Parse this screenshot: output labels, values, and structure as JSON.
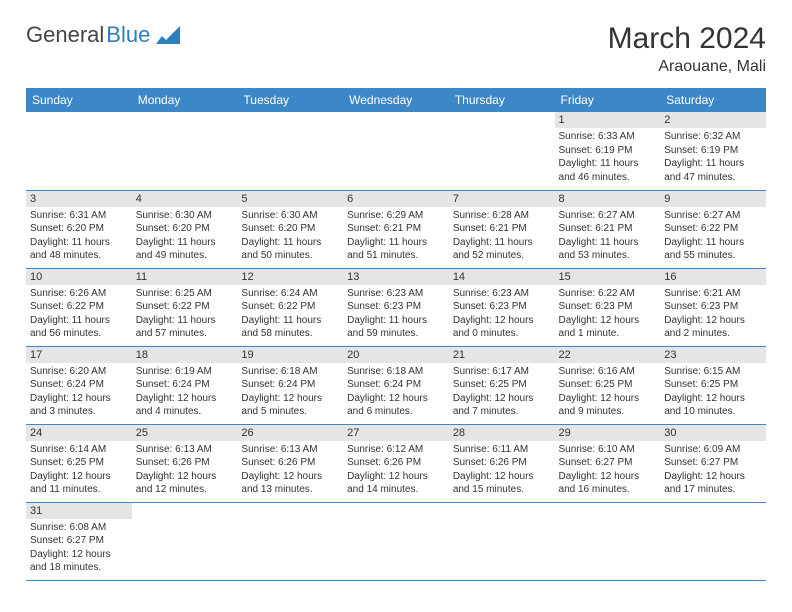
{
  "logo": {
    "text1": "General",
    "text2": "Blue"
  },
  "title": "March 2024",
  "location": "Araouane, Mali",
  "colors": {
    "header_bg": "#3c87c7",
    "header_text": "#ffffff",
    "daynum_bg": "#e5e5e5",
    "row_border": "#3c87c7",
    "text": "#333333",
    "logo_blue": "#2a7fbf"
  },
  "weekdays": [
    "Sunday",
    "Monday",
    "Tuesday",
    "Wednesday",
    "Thursday",
    "Friday",
    "Saturday"
  ],
  "weeks": [
    [
      null,
      null,
      null,
      null,
      null,
      {
        "d": "1",
        "sr": "Sunrise: 6:33 AM",
        "ss": "Sunset: 6:19 PM",
        "dl": "Daylight: 11 hours and 46 minutes."
      },
      {
        "d": "2",
        "sr": "Sunrise: 6:32 AM",
        "ss": "Sunset: 6:19 PM",
        "dl": "Daylight: 11 hours and 47 minutes."
      }
    ],
    [
      {
        "d": "3",
        "sr": "Sunrise: 6:31 AM",
        "ss": "Sunset: 6:20 PM",
        "dl": "Daylight: 11 hours and 48 minutes."
      },
      {
        "d": "4",
        "sr": "Sunrise: 6:30 AM",
        "ss": "Sunset: 6:20 PM",
        "dl": "Daylight: 11 hours and 49 minutes."
      },
      {
        "d": "5",
        "sr": "Sunrise: 6:30 AM",
        "ss": "Sunset: 6:20 PM",
        "dl": "Daylight: 11 hours and 50 minutes."
      },
      {
        "d": "6",
        "sr": "Sunrise: 6:29 AM",
        "ss": "Sunset: 6:21 PM",
        "dl": "Daylight: 11 hours and 51 minutes."
      },
      {
        "d": "7",
        "sr": "Sunrise: 6:28 AM",
        "ss": "Sunset: 6:21 PM",
        "dl": "Daylight: 11 hours and 52 minutes."
      },
      {
        "d": "8",
        "sr": "Sunrise: 6:27 AM",
        "ss": "Sunset: 6:21 PM",
        "dl": "Daylight: 11 hours and 53 minutes."
      },
      {
        "d": "9",
        "sr": "Sunrise: 6:27 AM",
        "ss": "Sunset: 6:22 PM",
        "dl": "Daylight: 11 hours and 55 minutes."
      }
    ],
    [
      {
        "d": "10",
        "sr": "Sunrise: 6:26 AM",
        "ss": "Sunset: 6:22 PM",
        "dl": "Daylight: 11 hours and 56 minutes."
      },
      {
        "d": "11",
        "sr": "Sunrise: 6:25 AM",
        "ss": "Sunset: 6:22 PM",
        "dl": "Daylight: 11 hours and 57 minutes."
      },
      {
        "d": "12",
        "sr": "Sunrise: 6:24 AM",
        "ss": "Sunset: 6:22 PM",
        "dl": "Daylight: 11 hours and 58 minutes."
      },
      {
        "d": "13",
        "sr": "Sunrise: 6:23 AM",
        "ss": "Sunset: 6:23 PM",
        "dl": "Daylight: 11 hours and 59 minutes."
      },
      {
        "d": "14",
        "sr": "Sunrise: 6:23 AM",
        "ss": "Sunset: 6:23 PM",
        "dl": "Daylight: 12 hours and 0 minutes."
      },
      {
        "d": "15",
        "sr": "Sunrise: 6:22 AM",
        "ss": "Sunset: 6:23 PM",
        "dl": "Daylight: 12 hours and 1 minute."
      },
      {
        "d": "16",
        "sr": "Sunrise: 6:21 AM",
        "ss": "Sunset: 6:23 PM",
        "dl": "Daylight: 12 hours and 2 minutes."
      }
    ],
    [
      {
        "d": "17",
        "sr": "Sunrise: 6:20 AM",
        "ss": "Sunset: 6:24 PM",
        "dl": "Daylight: 12 hours and 3 minutes."
      },
      {
        "d": "18",
        "sr": "Sunrise: 6:19 AM",
        "ss": "Sunset: 6:24 PM",
        "dl": "Daylight: 12 hours and 4 minutes."
      },
      {
        "d": "19",
        "sr": "Sunrise: 6:18 AM",
        "ss": "Sunset: 6:24 PM",
        "dl": "Daylight: 12 hours and 5 minutes."
      },
      {
        "d": "20",
        "sr": "Sunrise: 6:18 AM",
        "ss": "Sunset: 6:24 PM",
        "dl": "Daylight: 12 hours and 6 minutes."
      },
      {
        "d": "21",
        "sr": "Sunrise: 6:17 AM",
        "ss": "Sunset: 6:25 PM",
        "dl": "Daylight: 12 hours and 7 minutes."
      },
      {
        "d": "22",
        "sr": "Sunrise: 6:16 AM",
        "ss": "Sunset: 6:25 PM",
        "dl": "Daylight: 12 hours and 9 minutes."
      },
      {
        "d": "23",
        "sr": "Sunrise: 6:15 AM",
        "ss": "Sunset: 6:25 PM",
        "dl": "Daylight: 12 hours and 10 minutes."
      }
    ],
    [
      {
        "d": "24",
        "sr": "Sunrise: 6:14 AM",
        "ss": "Sunset: 6:25 PM",
        "dl": "Daylight: 12 hours and 11 minutes."
      },
      {
        "d": "25",
        "sr": "Sunrise: 6:13 AM",
        "ss": "Sunset: 6:26 PM",
        "dl": "Daylight: 12 hours and 12 minutes."
      },
      {
        "d": "26",
        "sr": "Sunrise: 6:13 AM",
        "ss": "Sunset: 6:26 PM",
        "dl": "Daylight: 12 hours and 13 minutes."
      },
      {
        "d": "27",
        "sr": "Sunrise: 6:12 AM",
        "ss": "Sunset: 6:26 PM",
        "dl": "Daylight: 12 hours and 14 minutes."
      },
      {
        "d": "28",
        "sr": "Sunrise: 6:11 AM",
        "ss": "Sunset: 6:26 PM",
        "dl": "Daylight: 12 hours and 15 minutes."
      },
      {
        "d": "29",
        "sr": "Sunrise: 6:10 AM",
        "ss": "Sunset: 6:27 PM",
        "dl": "Daylight: 12 hours and 16 minutes."
      },
      {
        "d": "30",
        "sr": "Sunrise: 6:09 AM",
        "ss": "Sunset: 6:27 PM",
        "dl": "Daylight: 12 hours and 17 minutes."
      }
    ],
    [
      {
        "d": "31",
        "sr": "Sunrise: 6:08 AM",
        "ss": "Sunset: 6:27 PM",
        "dl": "Daylight: 12 hours and 18 minutes."
      },
      null,
      null,
      null,
      null,
      null,
      null
    ]
  ]
}
